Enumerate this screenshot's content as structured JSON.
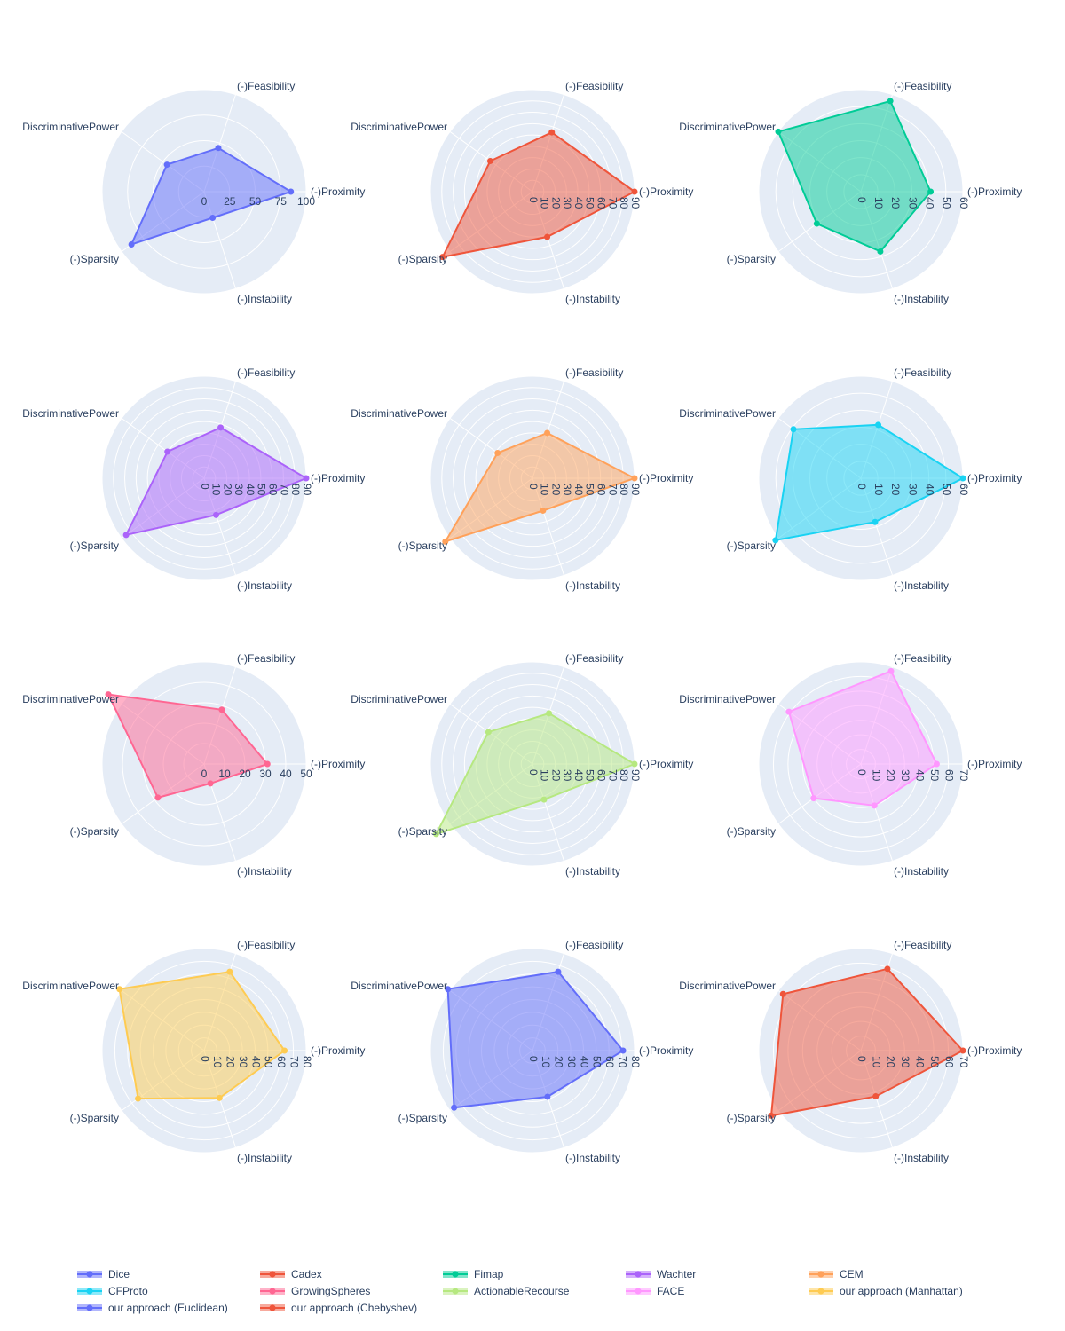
{
  "chart_data": {
    "type": "radar",
    "theta": [
      "(-)Proximity",
      "(-)Feasibility",
      "DiscriminativePower",
      "(-)Sparsity",
      "(-)Instability"
    ],
    "colors": {
      "polar_bg": "#e5ecf6",
      "grid": "#ffffff",
      "text": "#2a3f5f"
    },
    "grid": true,
    "legend_position": "bottom",
    "charts": [
      {
        "name": "Dice",
        "color": "#636efa",
        "range": [
          0,
          100
        ],
        "ticks": [
          0,
          25,
          50,
          75,
          100
        ],
        "values": [
          85,
          45,
          45,
          88,
          27
        ]
      },
      {
        "name": "Cadex",
        "color": "#EF553B",
        "range": [
          0,
          90
        ],
        "ticks": [
          0,
          10,
          20,
          30,
          40,
          50,
          60,
          70,
          80,
          90
        ],
        "values": [
          90,
          55,
          46,
          98,
          42
        ]
      },
      {
        "name": "Fimap",
        "color": "#00cc96",
        "range": [
          0,
          60
        ],
        "ticks": [
          0,
          10,
          20,
          30,
          40,
          50,
          60
        ],
        "values": [
          41,
          56,
          60,
          32,
          37
        ]
      },
      {
        "name": "Wachter",
        "color": "#ab63fa",
        "range": [
          0,
          90
        ],
        "ticks": [
          0,
          10,
          20,
          30,
          40,
          50,
          60,
          70,
          80,
          90
        ],
        "values": [
          90,
          47,
          40,
          85,
          34
        ]
      },
      {
        "name": "CEM",
        "color": "#FFA15A",
        "range": [
          0,
          90
        ],
        "ticks": [
          0,
          10,
          20,
          30,
          40,
          50,
          60,
          70,
          80,
          90
        ],
        "values": [
          90,
          42,
          38,
          95,
          30
        ]
      },
      {
        "name": "CFProto",
        "color": "#19d3f3",
        "range": [
          0,
          60
        ],
        "ticks": [
          0,
          10,
          20,
          30,
          40,
          50,
          60
        ],
        "values": [
          60,
          33,
          49,
          62,
          27
        ]
      },
      {
        "name": "GrowingSpheres",
        "color": "#FF6692",
        "range": [
          0,
          50
        ],
        "ticks": [
          0,
          10,
          20,
          30,
          40,
          50
        ],
        "values": [
          31,
          28,
          58,
          28,
          10
        ]
      },
      {
        "name": "ActionableRecourse",
        "color": "#B6E880",
        "range": [
          0,
          90
        ],
        "ticks": [
          0,
          10,
          20,
          30,
          40,
          50,
          60,
          70,
          80,
          90
        ],
        "values": [
          90,
          47,
          48,
          105,
          33
        ]
      },
      {
        "name": "FACE",
        "color": "#FF97FF",
        "range": [
          0,
          70
        ],
        "ticks": [
          0,
          10,
          20,
          30,
          40,
          50,
          60,
          70
        ],
        "values": [
          52,
          67,
          61,
          40,
          30
        ]
      },
      {
        "name": "our approach (Manhattan)",
        "color": "#FECB52",
        "range": [
          0,
          80
        ],
        "ticks": [
          0,
          10,
          20,
          30,
          40,
          50,
          60,
          70,
          80
        ],
        "values": [
          63,
          65,
          82,
          64,
          39
        ]
      },
      {
        "name": "our approach (Euclidean)",
        "color": "#636efa",
        "range": [
          0,
          80
        ],
        "ticks": [
          0,
          10,
          20,
          30,
          40,
          50,
          60,
          70,
          80
        ],
        "values": [
          71,
          65,
          82,
          76,
          38
        ]
      },
      {
        "name": "our approach (Chebyshev)",
        "color": "#EF553B",
        "range": [
          0,
          70
        ],
        "ticks": [
          0,
          10,
          20,
          30,
          40,
          50,
          60,
          70
        ],
        "values": [
          70,
          59,
          66,
          76,
          33
        ]
      }
    ]
  }
}
